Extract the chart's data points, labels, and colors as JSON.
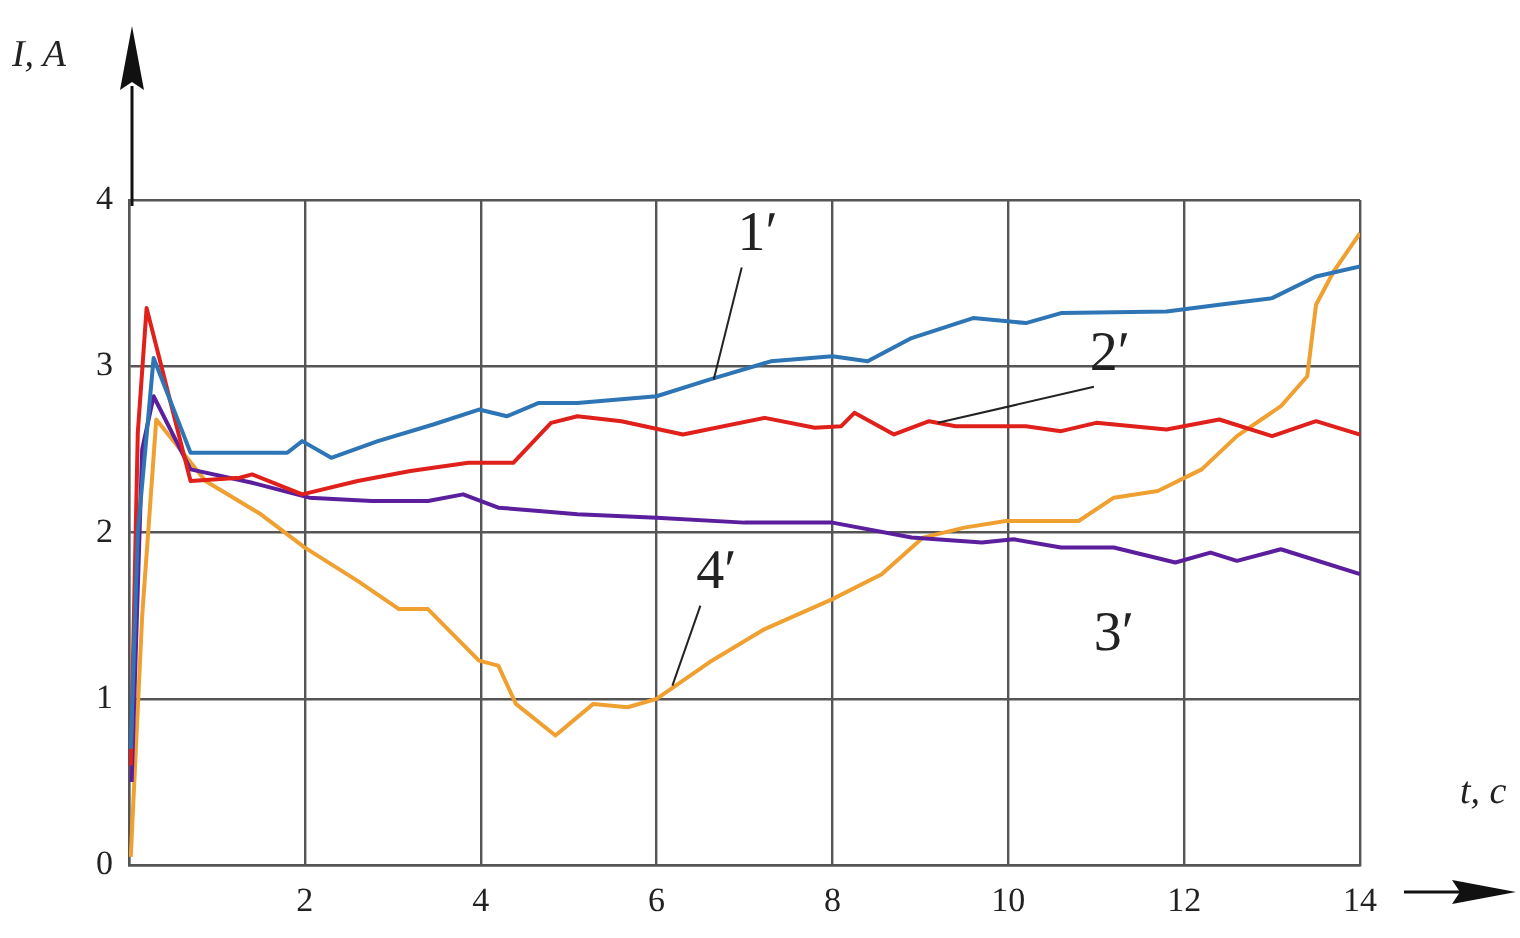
{
  "chart_data": {
    "type": "line",
    "xlabel": "t, с",
    "ylabel": "I, A",
    "xlim": [
      0,
      14
    ],
    "ylim": [
      0,
      4
    ],
    "xticks": [
      {
        "value": 0,
        "label": null
      },
      2,
      4,
      6,
      8,
      10,
      12,
      14
    ],
    "yticks": [
      0,
      1,
      2,
      3,
      4
    ],
    "grid": true,
    "legend": false,
    "series": [
      {
        "color": "#2e75b6",
        "x": [
          0.02,
          0.1,
          0.28,
          0.7,
          1.8,
          1.97,
          2.3,
          2.83,
          3.46,
          3.98,
          4.3,
          4.66,
          5.1,
          6,
          6.6,
          7.3,
          8,
          8.4,
          8.9,
          9.6,
          10.2,
          10.6,
          11.8,
          12.4,
          13,
          13.5,
          14
        ],
        "values": [
          0.7,
          2.0,
          3.05,
          2.48,
          2.48,
          2.55,
          2.45,
          2.55,
          2.65,
          2.74,
          2.7,
          2.78,
          2.78,
          2.82,
          2.92,
          3.03,
          3.06,
          3.03,
          3.17,
          3.29,
          3.26,
          3.32,
          3.33,
          3.37,
          3.41,
          3.54,
          3.6
        ]
      },
      {
        "color": "#e0201b",
        "x": [
          0.02,
          0.1,
          0.2,
          0.7,
          1.26,
          1.4,
          1.97,
          2.6,
          3.2,
          3.86,
          4.37,
          4.8,
          5.1,
          5.6,
          6.3,
          7.23,
          7.8,
          8.1,
          8.25,
          8.7,
          9.1,
          9.4,
          10.2,
          10.6,
          11,
          11.8,
          12.4,
          13,
          13.5,
          14
        ],
        "values": [
          0.6,
          2.6,
          3.35,
          2.31,
          2.33,
          2.35,
          2.23,
          2.31,
          2.37,
          2.42,
          2.42,
          2.66,
          2.7,
          2.67,
          2.59,
          2.69,
          2.63,
          2.64,
          2.72,
          2.59,
          2.67,
          2.64,
          2.64,
          2.61,
          2.66,
          2.62,
          2.68,
          2.58,
          2.67,
          2.59
        ]
      },
      {
        "color": "#5b1f9e",
        "x": [
          0.03,
          0.15,
          0.28,
          0.7,
          1.4,
          2.05,
          2.76,
          3.4,
          3.8,
          4.2,
          4.66,
          5.1,
          6,
          7,
          8,
          8.9,
          9.7,
          10.06,
          10.6,
          11.2,
          11.9,
          12.3,
          12.6,
          13.1,
          14
        ],
        "values": [
          0.5,
          2.5,
          2.82,
          2.38,
          2.3,
          2.21,
          2.19,
          2.19,
          2.23,
          2.15,
          2.13,
          2.11,
          2.09,
          2.06,
          2.06,
          1.97,
          1.94,
          1.96,
          1.91,
          1.91,
          1.82,
          1.88,
          1.83,
          1.9,
          1.75
        ]
      },
      {
        "color": "#f0a030",
        "x": [
          0.02,
          0.15,
          0.31,
          0.87,
          1.5,
          2,
          2.6,
          3.07,
          3.4,
          3.98,
          4.2,
          4.4,
          4.85,
          5.28,
          5.67,
          6,
          6.6,
          7.23,
          8,
          8.56,
          9.03,
          9.5,
          9.97,
          10.8,
          11.2,
          11.7,
          12.2,
          12.6,
          13.1,
          13.4,
          13.5,
          13.7,
          14
        ],
        "values": [
          0.05,
          1.5,
          2.68,
          2.31,
          2.11,
          1.91,
          1.71,
          1.54,
          1.54,
          1.23,
          1.2,
          0.97,
          0.78,
          0.97,
          0.95,
          1.0,
          1.22,
          1.42,
          1.6,
          1.75,
          1.97,
          2.03,
          2.07,
          2.07,
          2.21,
          2.25,
          2.38,
          2.58,
          2.76,
          2.94,
          3.37,
          3.57,
          3.8
        ]
      }
    ],
    "annotations": [
      {
        "text": "1′",
        "x": 6.65,
        "y": 2.92
      },
      {
        "text": "2′",
        "x": 9.2,
        "y": 2.66
      },
      {
        "text": "3′",
        "x": 11.2,
        "y": 1.91
      },
      {
        "text": "4′",
        "x": 6.18,
        "y": 1.08
      }
    ]
  }
}
